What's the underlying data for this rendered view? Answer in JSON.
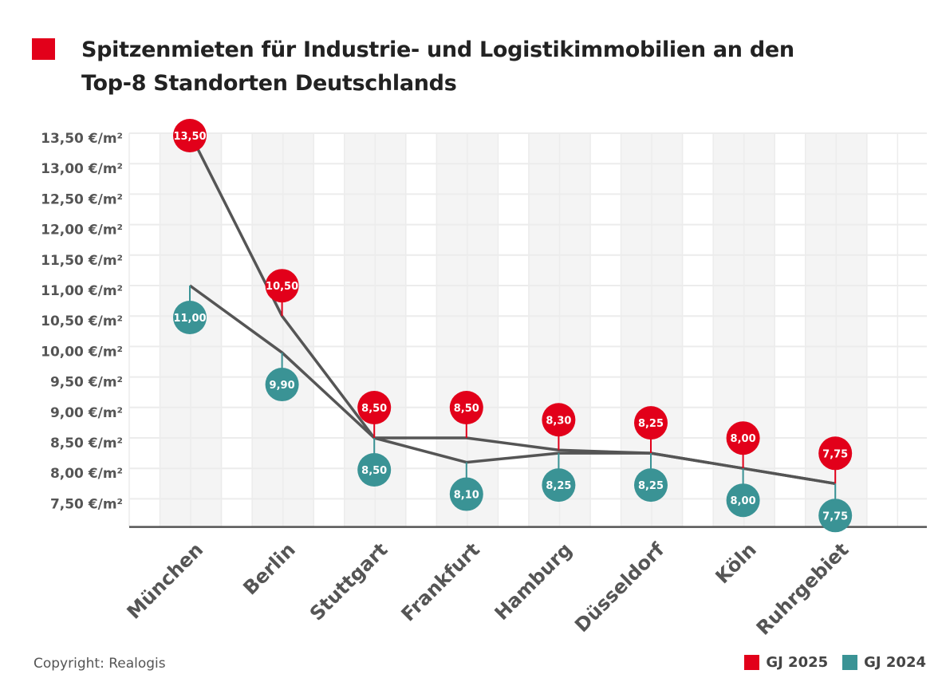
{
  "title": "Spitzenmieten für Industrie- und Logistikimmobilien an den Top-8 Standorten Deutschlands",
  "copyright": "Copyright: Realogis",
  "colors": {
    "gj2025": "#e2001a",
    "gj2024": "#3a9395",
    "line": "#555555",
    "title_mark": "#e2001a"
  },
  "chart_data": {
    "type": "line",
    "title": "Spitzenmieten für Industrie- und Logistikimmobilien an den Top-8 Standorten Deutschlands",
    "categories": [
      "München",
      "Berlin",
      "Stuttgart",
      "Frankfurt",
      "Hamburg",
      "Düsseldorf",
      "Köln",
      "Ruhrgebiet"
    ],
    "series": [
      {
        "name": "GJ 2025",
        "values": [
          13.5,
          10.5,
          8.5,
          8.5,
          8.3,
          8.25,
          8.0,
          7.75
        ],
        "labels": [
          "13,50",
          "10,50",
          "8,50",
          "8,50",
          "8,30",
          "8,25",
          "8,00",
          "7,75"
        ]
      },
      {
        "name": "GJ 2024",
        "values": [
          11.0,
          9.9,
          8.5,
          8.1,
          8.25,
          8.25,
          8.0,
          7.75
        ],
        "labels": [
          "11,00",
          "9,90",
          "8,50",
          "8,10",
          "8,25",
          "8,25",
          "8,00",
          "7,75"
        ]
      }
    ],
    "yticks": [
      "13,50 €/m²",
      "13,00 €/m²",
      "12,50 €/m²",
      "12,00 €/m²",
      "11,50 €/m²",
      "11,00 €/m²",
      "10,50 €/m²",
      "10,00 €/m²",
      "9,50 €/m²",
      "9,00 €/m²",
      "8,50 €/m²",
      "8,00 €/m²",
      "7,50 €/m²"
    ],
    "ytick_values": [
      13.5,
      13,
      12.5,
      12,
      11.5,
      11,
      10.5,
      10,
      9.5,
      9,
      8.5,
      8,
      7.5
    ],
    "ylim": [
      7.0,
      13.5
    ],
    "grid": true,
    "legend": "bottom-right"
  }
}
